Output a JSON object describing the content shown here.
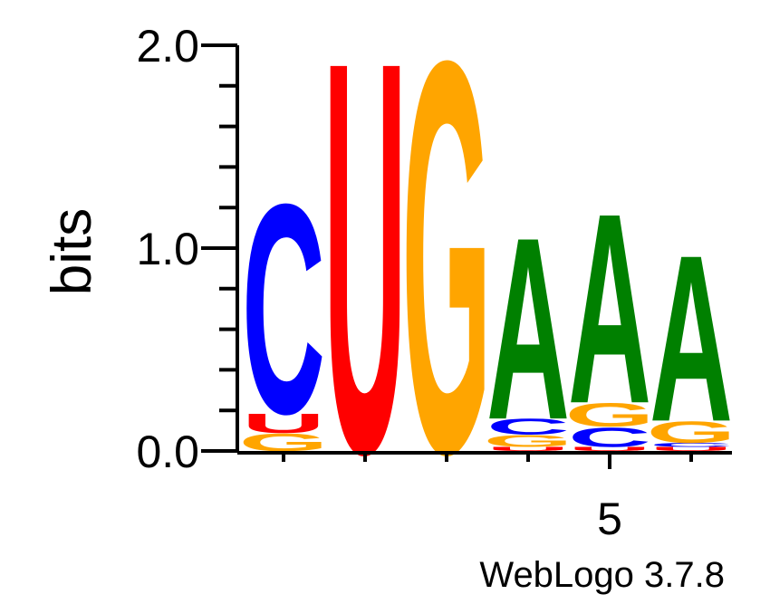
{
  "chart_data": {
    "type": "sequence-logo",
    "ylabel": "bits",
    "ylim": [
      0,
      2
    ],
    "yticks": [
      "0.0",
      "1.0",
      "2.0"
    ],
    "x_labeled_ticks": [
      {
        "position": 5,
        "label": "5"
      }
    ],
    "positions": [
      1,
      2,
      3,
      4,
      5,
      6
    ],
    "colors": {
      "A": "#008000",
      "C": "#0000ff",
      "G": "#ffa500",
      "U": "#ff0000"
    },
    "stacks": [
      {
        "position": 1,
        "letters": [
          {
            "letter": "G",
            "bits": 0.09
          },
          {
            "letter": "U",
            "bits": 0.1
          },
          {
            "letter": "C",
            "bits": 1.07
          }
        ]
      },
      {
        "position": 2,
        "letters": [
          {
            "letter": "U",
            "bits": 2.0
          }
        ]
      },
      {
        "position": 3,
        "letters": [
          {
            "letter": "G",
            "bits": 2.0
          }
        ]
      },
      {
        "position": 4,
        "letters": [
          {
            "letter": "U",
            "bits": 0.02
          },
          {
            "letter": "G",
            "bits": 0.06
          },
          {
            "letter": "C",
            "bits": 0.08
          },
          {
            "letter": "A",
            "bits": 0.93
          }
        ]
      },
      {
        "position": 5,
        "letters": [
          {
            "letter": "U",
            "bits": 0.02
          },
          {
            "letter": "C",
            "bits": 0.1
          },
          {
            "letter": "G",
            "bits": 0.12
          },
          {
            "letter": "A",
            "bits": 0.97
          }
        ]
      },
      {
        "position": 6,
        "letters": [
          {
            "letter": "U",
            "bits": 0.02
          },
          {
            "letter": "C",
            "bits": 0.02
          },
          {
            "letter": "G",
            "bits": 0.11
          },
          {
            "letter": "A",
            "bits": 0.85
          }
        ]
      }
    ]
  },
  "footer": {
    "credit": "WebLogo 3.7.8"
  }
}
